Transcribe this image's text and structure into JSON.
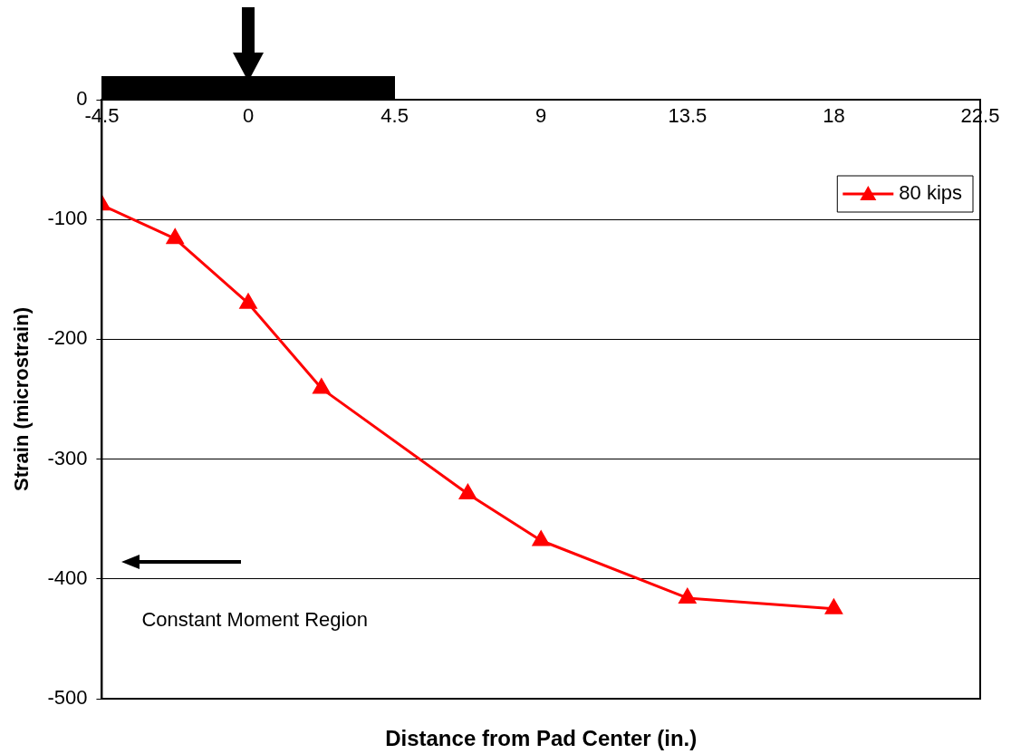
{
  "chart_data": {
    "type": "line",
    "xlabel": "Distance from Pad Center (in.)",
    "ylabel": "Strain (microstrain)",
    "x": [
      -4.5,
      -2.25,
      0,
      2.25,
      6.75,
      9,
      13.5,
      18
    ],
    "series": [
      {
        "name": "80 kips",
        "color": "#ff0000",
        "values": [
          -88,
          -116,
          -170,
          -241,
          -329,
          -368,
          -416,
          -425
        ]
      }
    ],
    "xlim": [
      -4.5,
      22.5
    ],
    "xticks": [
      -4.5,
      0,
      4.5,
      9,
      13.5,
      18,
      22.5
    ],
    "ylim": [
      -500,
      0
    ],
    "yticks": [
      -500,
      -400,
      -300,
      -200,
      -100,
      0
    ],
    "grid": "y",
    "legend": "top right",
    "marker": "triangle",
    "line_style": "solid",
    "annotations": [
      "Constant Moment Region"
    ]
  }
}
